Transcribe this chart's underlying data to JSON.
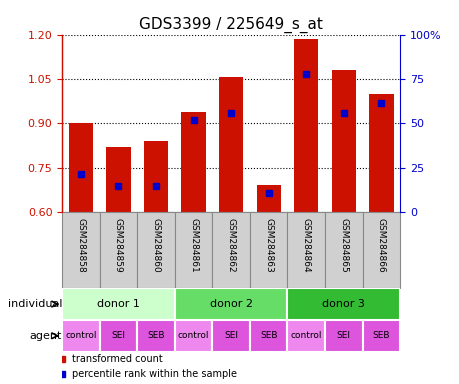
{
  "title": "GDS3399 / 225649_s_at",
  "samples": [
    "GSM284858",
    "GSM284859",
    "GSM284860",
    "GSM284861",
    "GSM284862",
    "GSM284863",
    "GSM284864",
    "GSM284865",
    "GSM284866"
  ],
  "bar_values": [
    0.9,
    0.82,
    0.84,
    0.94,
    1.055,
    0.69,
    1.185,
    1.08,
    1.0
  ],
  "percentile_values": [
    0.728,
    0.688,
    0.688,
    0.91,
    0.935,
    0.665,
    1.068,
    0.935,
    0.97
  ],
  "ylim_left": [
    0.6,
    1.2
  ],
  "ylim_right": [
    0,
    100
  ],
  "yticks_left": [
    0.6,
    0.75,
    0.9,
    1.05,
    1.2
  ],
  "yticks_right": [
    0,
    25,
    50,
    75,
    100
  ],
  "bar_color": "#cc1100",
  "marker_color": "#0000cc",
  "gsm_bg_color": "#d0d0d0",
  "gsm_border_color": "#888888",
  "individual_colors": [
    "#ccffcc",
    "#66dd66",
    "#33bb33"
  ],
  "agent_color_light": "#ee88ee",
  "agent_color_dark": "#dd55dd",
  "agent_labels": [
    "control",
    "SEI",
    "SEB",
    "control",
    "SEI",
    "SEB",
    "control",
    "SEI",
    "SEB"
  ],
  "legend_red": "transformed count",
  "legend_blue": "percentile rank within the sample",
  "title_fontsize": 11,
  "tick_fontsize": 8,
  "label_fontsize": 8
}
